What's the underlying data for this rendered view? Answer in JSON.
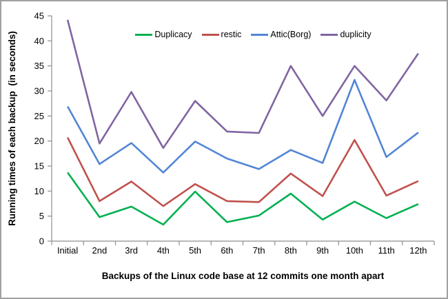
{
  "chart_data": {
    "type": "line",
    "title": "",
    "xlabel": "Backups of the Linux code base at 12 commits one month apart",
    "ylabel": "Running times of each backup  (in seconds)",
    "categories": [
      "Initial",
      "2nd",
      "3rd",
      "4th",
      "5th",
      "6th",
      "7th",
      "8th",
      "9th",
      "10th",
      "11th",
      "12th"
    ],
    "series": [
      {
        "name": "Duplicacy",
        "color": "#00B050",
        "values": [
          13.7,
          4.8,
          6.9,
          3.3,
          9.9,
          3.8,
          5.1,
          9.5,
          4.3,
          7.9,
          4.6,
          7.4
        ]
      },
      {
        "name": "restic",
        "color": "#C0504D",
        "values": [
          20.7,
          8.0,
          11.9,
          7.0,
          11.4,
          8.0,
          7.8,
          13.5,
          9.0,
          20.2,
          9.1,
          12.0
        ]
      },
      {
        "name": "Attic(Borg)",
        "color": "#5285D5",
        "values": [
          26.9,
          15.4,
          19.6,
          13.7,
          19.9,
          16.5,
          14.4,
          18.2,
          15.6,
          32.2,
          16.8,
          21.7
        ]
      },
      {
        "name": "duplicity",
        "color": "#8064A2",
        "values": [
          44.2,
          19.5,
          29.8,
          18.6,
          28.0,
          21.9,
          21.6,
          35.0,
          25.0,
          35.0,
          28.1,
          37.5
        ]
      }
    ],
    "ylim": [
      0,
      45
    ],
    "ytick_step": 5,
    "yticks": [
      0,
      5,
      10,
      15,
      20,
      25,
      30,
      35,
      40,
      45
    ],
    "grid": false,
    "legend_position": "top-center",
    "axis_color": "#8e8e8e",
    "text_color": "#000000"
  }
}
